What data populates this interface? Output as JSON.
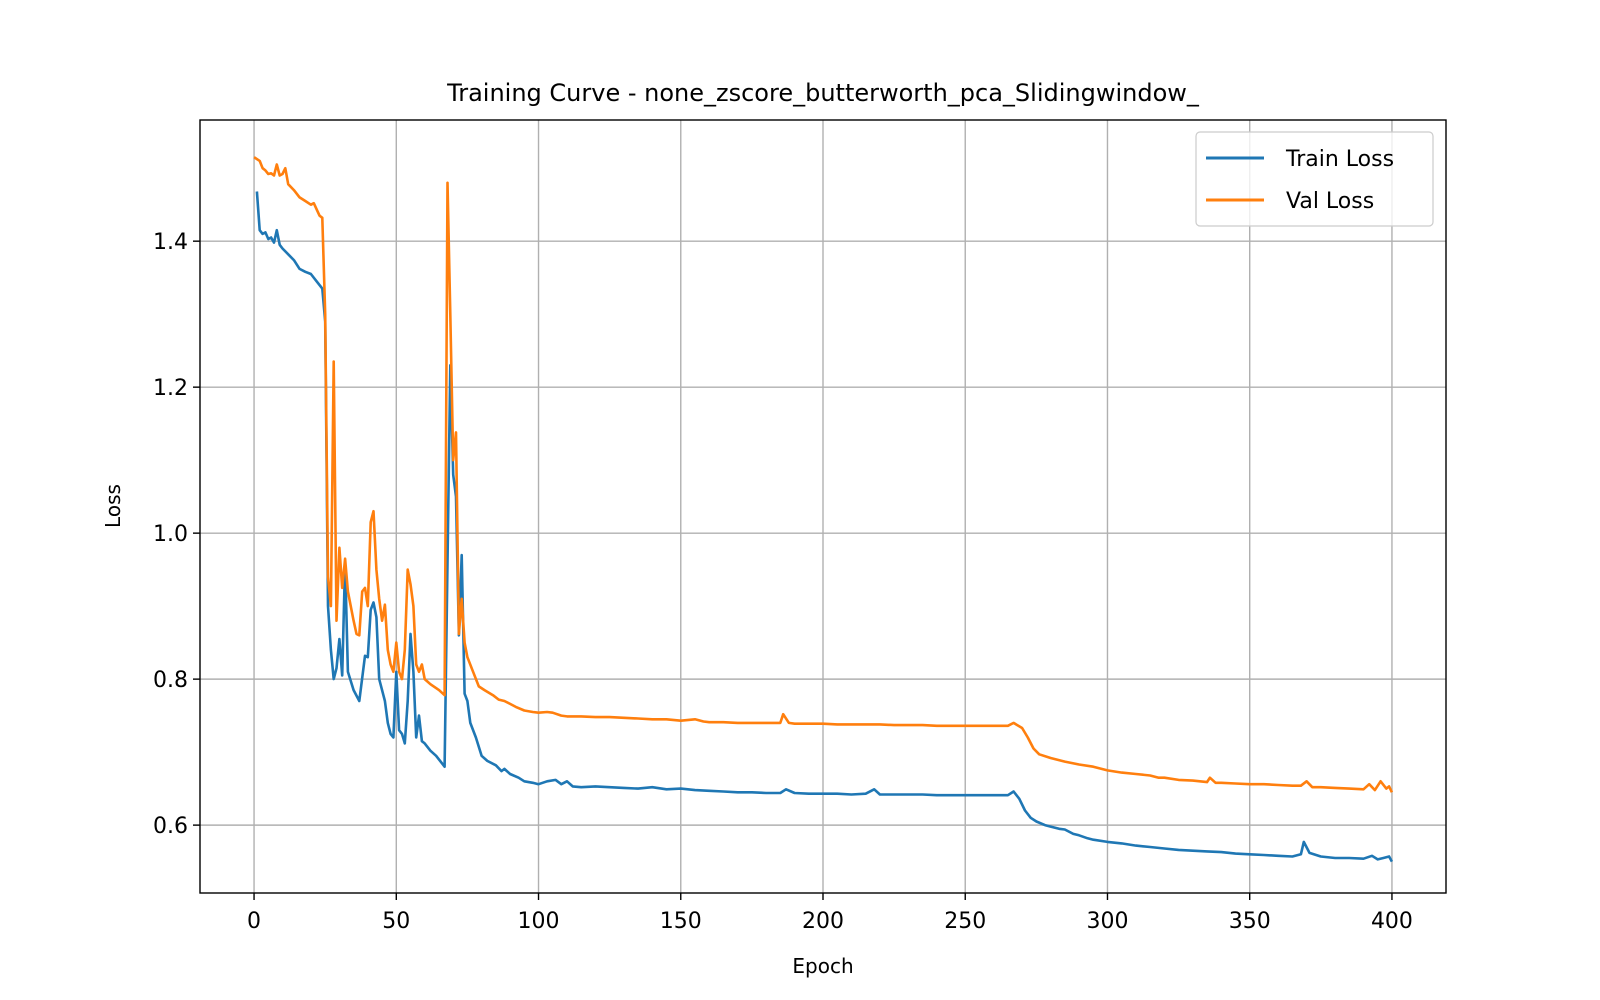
{
  "chart_data": {
    "type": "line",
    "title": "Training Curve - none_zscore_butterworth_pca_Slidingwindow_",
    "xlabel": "Epoch",
    "ylabel": "Loss",
    "xlim": [
      -19,
      419
    ],
    "ylim": [
      0.507,
      1.566
    ],
    "xticks": [
      0,
      50,
      100,
      150,
      200,
      250,
      300,
      350,
      400
    ],
    "yticks": [
      0.6,
      0.8,
      1.0,
      1.2,
      1.4
    ],
    "xtick_labels": [
      "0",
      "50",
      "100",
      "150",
      "200",
      "250",
      "300",
      "350",
      "400"
    ],
    "ytick_labels": [
      "0.6",
      "0.8",
      "1.0",
      "1.2",
      "1.4"
    ],
    "grid": true,
    "legend_position": "top-right",
    "series": [
      {
        "name": "Train Loss",
        "color": "#1f77b4",
        "points": [
          [
            1,
            1.468
          ],
          [
            2,
            1.415
          ],
          [
            3,
            1.41
          ],
          [
            4,
            1.412
          ],
          [
            5,
            1.403
          ],
          [
            6,
            1.405
          ],
          [
            7,
            1.398
          ],
          [
            8,
            1.415
          ],
          [
            9,
            1.395
          ],
          [
            10,
            1.39
          ],
          [
            12,
            1.382
          ],
          [
            14,
            1.374
          ],
          [
            16,
            1.362
          ],
          [
            18,
            1.358
          ],
          [
            20,
            1.355
          ],
          [
            22,
            1.345
          ],
          [
            24,
            1.335
          ],
          [
            25,
            1.29
          ],
          [
            26,
            0.9
          ],
          [
            27,
            0.84
          ],
          [
            28,
            0.8
          ],
          [
            29,
            0.815
          ],
          [
            30,
            0.855
          ],
          [
            31,
            0.805
          ],
          [
            32,
            0.96
          ],
          [
            33,
            0.81
          ],
          [
            35,
            0.785
          ],
          [
            37,
            0.77
          ],
          [
            39,
            0.832
          ],
          [
            40,
            0.83
          ],
          [
            41,
            0.895
          ],
          [
            42,
            0.905
          ],
          [
            43,
            0.885
          ],
          [
            44,
            0.8
          ],
          [
            46,
            0.77
          ],
          [
            47,
            0.74
          ],
          [
            48,
            0.725
          ],
          [
            49,
            0.72
          ],
          [
            50,
            0.81
          ],
          [
            51,
            0.73
          ],
          [
            52,
            0.725
          ],
          [
            53,
            0.712
          ],
          [
            54,
            0.77
          ],
          [
            55,
            0.862
          ],
          [
            56,
            0.81
          ],
          [
            57,
            0.72
          ],
          [
            58,
            0.75
          ],
          [
            59,
            0.715
          ],
          [
            60,
            0.712
          ],
          [
            62,
            0.702
          ],
          [
            64,
            0.695
          ],
          [
            66,
            0.685
          ],
          [
            67,
            0.68
          ],
          [
            68,
            0.96
          ],
          [
            69,
            1.23
          ],
          [
            70,
            1.08
          ],
          [
            71,
            1.05
          ],
          [
            72,
            0.86
          ],
          [
            73,
            0.97
          ],
          [
            74,
            0.78
          ],
          [
            75,
            0.77
          ],
          [
            76,
            0.74
          ],
          [
            78,
            0.72
          ],
          [
            80,
            0.695
          ],
          [
            82,
            0.688
          ],
          [
            85,
            0.682
          ],
          [
            87,
            0.674
          ],
          [
            88,
            0.677
          ],
          [
            90,
            0.67
          ],
          [
            93,
            0.665
          ],
          [
            95,
            0.66
          ],
          [
            98,
            0.658
          ],
          [
            100,
            0.656
          ],
          [
            103,
            0.66
          ],
          [
            106,
            0.662
          ],
          [
            108,
            0.656
          ],
          [
            110,
            0.66
          ],
          [
            112,
            0.653
          ],
          [
            115,
            0.652
          ],
          [
            120,
            0.653
          ],
          [
            125,
            0.652
          ],
          [
            130,
            0.651
          ],
          [
            135,
            0.65
          ],
          [
            140,
            0.652
          ],
          [
            145,
            0.649
          ],
          [
            150,
            0.65
          ],
          [
            155,
            0.648
          ],
          [
            160,
            0.647
          ],
          [
            165,
            0.646
          ],
          [
            170,
            0.645
          ],
          [
            175,
            0.645
          ],
          [
            180,
            0.644
          ],
          [
            185,
            0.644
          ],
          [
            187,
            0.649
          ],
          [
            190,
            0.644
          ],
          [
            195,
            0.643
          ],
          [
            200,
            0.643
          ],
          [
            205,
            0.643
          ],
          [
            210,
            0.642
          ],
          [
            215,
            0.643
          ],
          [
            218,
            0.649
          ],
          [
            220,
            0.642
          ],
          [
            225,
            0.642
          ],
          [
            230,
            0.642
          ],
          [
            235,
            0.642
          ],
          [
            240,
            0.641
          ],
          [
            245,
            0.641
          ],
          [
            250,
            0.641
          ],
          [
            255,
            0.641
          ],
          [
            260,
            0.641
          ],
          [
            265,
            0.641
          ],
          [
            267,
            0.646
          ],
          [
            269,
            0.636
          ],
          [
            271,
            0.62
          ],
          [
            273,
            0.61
          ],
          [
            275,
            0.605
          ],
          [
            278,
            0.6
          ],
          [
            280,
            0.598
          ],
          [
            283,
            0.595
          ],
          [
            285,
            0.594
          ],
          [
            288,
            0.588
          ],
          [
            290,
            0.586
          ],
          [
            293,
            0.582
          ],
          [
            295,
            0.58
          ],
          [
            300,
            0.577
          ],
          [
            305,
            0.575
          ],
          [
            310,
            0.572
          ],
          [
            315,
            0.57
          ],
          [
            320,
            0.568
          ],
          [
            325,
            0.566
          ],
          [
            330,
            0.565
          ],
          [
            335,
            0.564
          ],
          [
            340,
            0.563
          ],
          [
            345,
            0.561
          ],
          [
            350,
            0.56
          ],
          [
            355,
            0.559
          ],
          [
            360,
            0.558
          ],
          [
            365,
            0.557
          ],
          [
            368,
            0.56
          ],
          [
            369,
            0.577
          ],
          [
            371,
            0.562
          ],
          [
            375,
            0.557
          ],
          [
            380,
            0.555
          ],
          [
            385,
            0.555
          ],
          [
            390,
            0.554
          ],
          [
            393,
            0.558
          ],
          [
            395,
            0.553
          ],
          [
            397,
            0.555
          ],
          [
            399,
            0.557
          ],
          [
            400,
            0.55
          ]
        ]
      },
      {
        "name": "Val Loss",
        "color": "#ff7f0e",
        "points": [
          [
            0,
            1.515
          ],
          [
            2,
            1.51
          ],
          [
            3,
            1.5
          ],
          [
            4,
            1.497
          ],
          [
            5,
            1.492
          ],
          [
            6,
            1.493
          ],
          [
            7,
            1.49
          ],
          [
            8,
            1.505
          ],
          [
            9,
            1.49
          ],
          [
            10,
            1.492
          ],
          [
            11,
            1.5
          ],
          [
            12,
            1.478
          ],
          [
            14,
            1.47
          ],
          [
            16,
            1.46
          ],
          [
            18,
            1.455
          ],
          [
            20,
            1.45
          ],
          [
            21,
            1.452
          ],
          [
            23,
            1.435
          ],
          [
            24,
            1.432
          ],
          [
            25,
            1.3
          ],
          [
            26,
            0.94
          ],
          [
            27,
            0.9
          ],
          [
            28,
            1.235
          ],
          [
            29,
            0.88
          ],
          [
            30,
            0.98
          ],
          [
            31,
            0.925
          ],
          [
            32,
            0.965
          ],
          [
            33,
            0.92
          ],
          [
            35,
            0.88
          ],
          [
            36,
            0.862
          ],
          [
            37,
            0.86
          ],
          [
            38,
            0.92
          ],
          [
            39,
            0.925
          ],
          [
            40,
            0.9
          ],
          [
            41,
            1.015
          ],
          [
            42,
            1.03
          ],
          [
            43,
            0.95
          ],
          [
            44,
            0.91
          ],
          [
            45,
            0.88
          ],
          [
            46,
            0.902
          ],
          [
            47,
            0.84
          ],
          [
            48,
            0.82
          ],
          [
            49,
            0.81
          ],
          [
            50,
            0.85
          ],
          [
            51,
            0.81
          ],
          [
            52,
            0.8
          ],
          [
            53,
            0.84
          ],
          [
            54,
            0.95
          ],
          [
            55,
            0.93
          ],
          [
            56,
            0.9
          ],
          [
            57,
            0.82
          ],
          [
            58,
            0.81
          ],
          [
            59,
            0.82
          ],
          [
            60,
            0.8
          ],
          [
            62,
            0.793
          ],
          [
            65,
            0.785
          ],
          [
            67,
            0.778
          ],
          [
            68,
            1.48
          ],
          [
            69,
            1.3
          ],
          [
            70,
            1.1
          ],
          [
            71,
            1.138
          ],
          [
            72,
            0.862
          ],
          [
            73,
            0.91
          ],
          [
            74,
            0.85
          ],
          [
            75,
            0.83
          ],
          [
            77,
            0.81
          ],
          [
            79,
            0.79
          ],
          [
            81,
            0.785
          ],
          [
            84,
            0.778
          ],
          [
            86,
            0.772
          ],
          [
            88,
            0.77
          ],
          [
            90,
            0.766
          ],
          [
            92,
            0.762
          ],
          [
            95,
            0.757
          ],
          [
            98,
            0.755
          ],
          [
            100,
            0.754
          ],
          [
            103,
            0.755
          ],
          [
            105,
            0.754
          ],
          [
            108,
            0.75
          ],
          [
            110,
            0.749
          ],
          [
            115,
            0.749
          ],
          [
            120,
            0.748
          ],
          [
            125,
            0.748
          ],
          [
            130,
            0.747
          ],
          [
            135,
            0.746
          ],
          [
            140,
            0.745
          ],
          [
            145,
            0.745
          ],
          [
            150,
            0.743
          ],
          [
            155,
            0.745
          ],
          [
            158,
            0.742
          ],
          [
            160,
            0.741
          ],
          [
            165,
            0.741
          ],
          [
            170,
            0.74
          ],
          [
            175,
            0.74
          ],
          [
            180,
            0.74
          ],
          [
            185,
            0.74
          ],
          [
            186,
            0.752
          ],
          [
            188,
            0.74
          ],
          [
            190,
            0.739
          ],
          [
            195,
            0.739
          ],
          [
            200,
            0.739
          ],
          [
            205,
            0.738
          ],
          [
            210,
            0.738
          ],
          [
            215,
            0.738
          ],
          [
            220,
            0.738
          ],
          [
            225,
            0.737
          ],
          [
            230,
            0.737
          ],
          [
            235,
            0.737
          ],
          [
            240,
            0.736
          ],
          [
            245,
            0.736
          ],
          [
            250,
            0.736
          ],
          [
            255,
            0.736
          ],
          [
            260,
            0.736
          ],
          [
            265,
            0.736
          ],
          [
            267,
            0.74
          ],
          [
            270,
            0.733
          ],
          [
            272,
            0.72
          ],
          [
            274,
            0.705
          ],
          [
            276,
            0.697
          ],
          [
            280,
            0.692
          ],
          [
            285,
            0.687
          ],
          [
            290,
            0.683
          ],
          [
            295,
            0.68
          ],
          [
            300,
            0.675
          ],
          [
            305,
            0.672
          ],
          [
            310,
            0.67
          ],
          [
            315,
            0.668
          ],
          [
            318,
            0.665
          ],
          [
            320,
            0.665
          ],
          [
            325,
            0.662
          ],
          [
            330,
            0.661
          ],
          [
            335,
            0.659
          ],
          [
            336,
            0.665
          ],
          [
            338,
            0.658
          ],
          [
            340,
            0.658
          ],
          [
            345,
            0.657
          ],
          [
            350,
            0.656
          ],
          [
            355,
            0.656
          ],
          [
            360,
            0.655
          ],
          [
            365,
            0.654
          ],
          [
            368,
            0.654
          ],
          [
            370,
            0.66
          ],
          [
            372,
            0.652
          ],
          [
            375,
            0.652
          ],
          [
            380,
            0.651
          ],
          [
            385,
            0.65
          ],
          [
            390,
            0.649
          ],
          [
            392,
            0.656
          ],
          [
            394,
            0.648
          ],
          [
            396,
            0.66
          ],
          [
            398,
            0.65
          ],
          [
            399,
            0.653
          ],
          [
            400,
            0.645
          ]
        ]
      }
    ]
  }
}
